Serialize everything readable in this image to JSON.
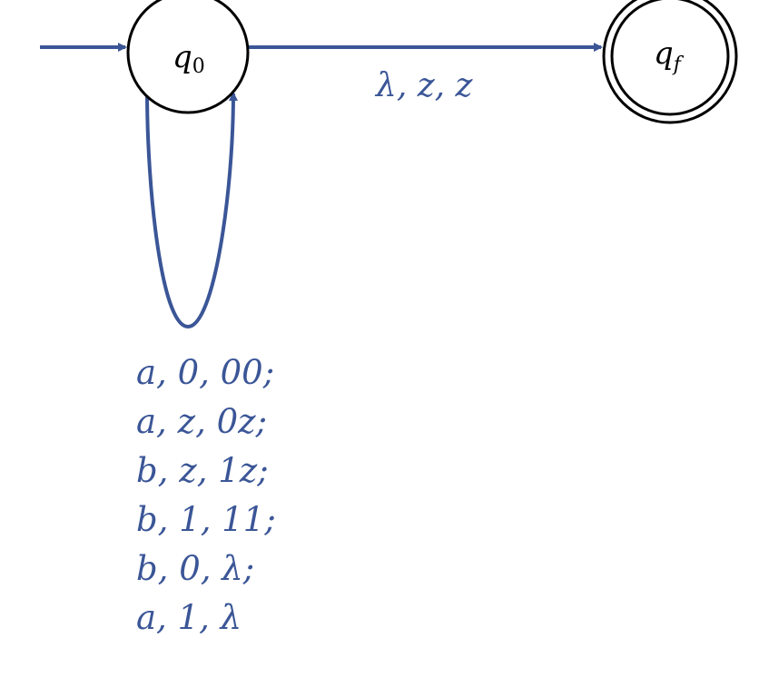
{
  "colors": {
    "edge": "#3b5697",
    "state_stroke": "#000000",
    "background": "#ffffff"
  },
  "states": {
    "initial": {
      "symbol": "q",
      "subscript": "0"
    },
    "final": {
      "symbol": "q",
      "subscript": "f"
    }
  },
  "transitions": {
    "q0_to_qf": {
      "label": "λ, z, z"
    },
    "q0_loop": {
      "labels": [
        "a, 0, 00;",
        "a, z, 0z;",
        "b, z, 1z;",
        "b, 1, 11;",
        "b, 0, λ;",
        "a, 1, λ"
      ]
    }
  }
}
